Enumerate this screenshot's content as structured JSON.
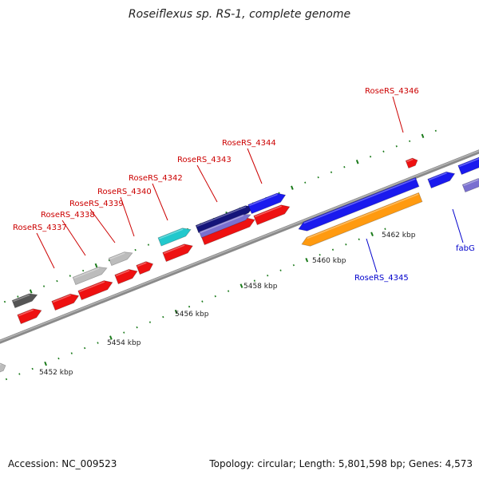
{
  "header": {
    "title": "Roseiflexus sp. RS-1, complete genome"
  },
  "footer": {
    "accession": "Accession: NC_009523",
    "stats": "Topology: circular; Length: 5,801,598 bp; Genes: 4,573"
  },
  "scale_labels": [
    "5452 kbp",
    "5454 kbp",
    "5456 kbp",
    "5458 kbp",
    "5460 kbp",
    "5462 kbp"
  ],
  "gene_labels": [
    {
      "text": "RoseRS_4337",
      "color": "#cc0000"
    },
    {
      "text": "RoseRS_4338",
      "color": "#cc0000"
    },
    {
      "text": "RoseRS_4339",
      "color": "#cc0000"
    },
    {
      "text": "RoseRS_4340",
      "color": "#cc0000"
    },
    {
      "text": "RoseRS_4342",
      "color": "#cc0000"
    },
    {
      "text": "RoseRS_4343",
      "color": "#cc0000"
    },
    {
      "text": "RoseRS_4344",
      "color": "#cc0000"
    },
    {
      "text": "RoseRS_4346",
      "color": "#cc0000"
    },
    {
      "text": "RoseRS_4345",
      "color": "#0000cc"
    },
    {
      "text": "fabG",
      "color": "#0000cc"
    }
  ],
  "colors": {
    "backbone": "#888888",
    "tick": "#1a7a1a",
    "red": "#ee1111",
    "blue": "#1a1aee",
    "navy": "#14147a",
    "lavender": "#7a70d0",
    "cyan": "#22c8cc",
    "orange": "#ff9a10",
    "grey": "#bcbcbc",
    "darkgrey": "#555555"
  }
}
